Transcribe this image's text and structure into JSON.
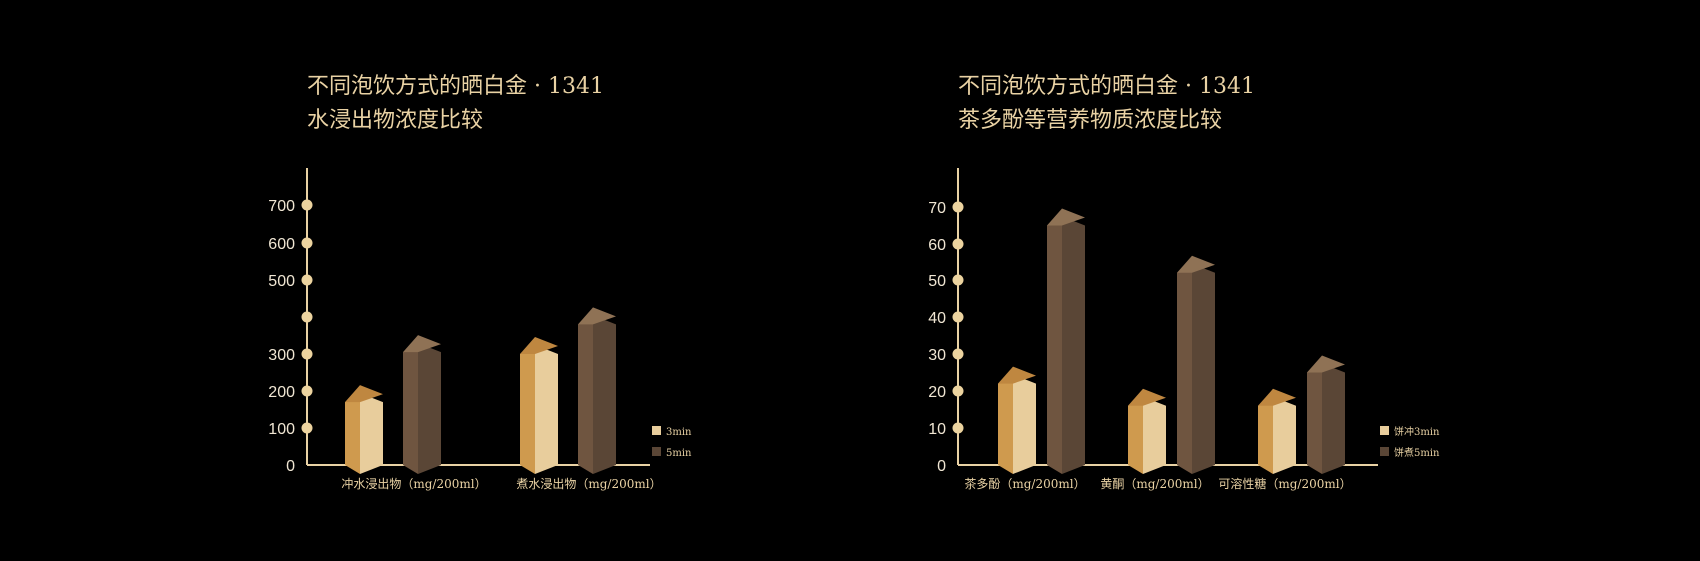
{
  "colors": {
    "axis": "#e9d2a4",
    "dot": "#ecd39f",
    "s1_front": "#e8cd9c",
    "s1_side": "#cf9a4e",
    "s1_top": "#bf8740",
    "s2_front": "#5a4636",
    "s2_side": "#6f5540",
    "s2_top": "#8f7255"
  },
  "chart_data": [
    {
      "type": "bar",
      "title_line1": "不同泡饮方式的晒白金 · 1341",
      "title_line2": "水浸出物浓度比较",
      "categories": [
        "冲水浸出物（mg/200ml）",
        "煮水浸出物（mg/200ml）"
      ],
      "series": [
        {
          "name": "3min",
          "values": [
            170,
            300
          ]
        },
        {
          "name": "5min",
          "values": [
            305,
            380
          ]
        }
      ],
      "yticks": [
        0,
        100,
        200,
        300,
        400,
        500,
        600,
        700
      ],
      "ytick_labels": [
        "0",
        "100",
        "200",
        "300",
        "",
        "500",
        "600",
        "700"
      ],
      "ylim": [
        0,
        700
      ],
      "legend_position": "bottom-right"
    },
    {
      "type": "bar",
      "title_line1": "不同泡饮方式的晒白金 · 1341",
      "title_line2": "茶多酚等营养物质浓度比较",
      "categories": [
        "茶多酚（mg/200ml）",
        "黄酮（mg/200ml）",
        "可溶性糖（mg/200ml）"
      ],
      "series": [
        {
          "name": "饼冲3min",
          "values": [
            22,
            16,
            16
          ]
        },
        {
          "name": "饼煮5min",
          "values": [
            65,
            52,
            25
          ]
        }
      ],
      "yticks": [
        0,
        10,
        20,
        30,
        40,
        50,
        60,
        70
      ],
      "ytick_labels": [
        "0",
        "10",
        "20",
        "30",
        "40",
        "50",
        "60",
        "70"
      ],
      "ylim": [
        0,
        70
      ],
      "legend_position": "bottom-right"
    }
  ]
}
